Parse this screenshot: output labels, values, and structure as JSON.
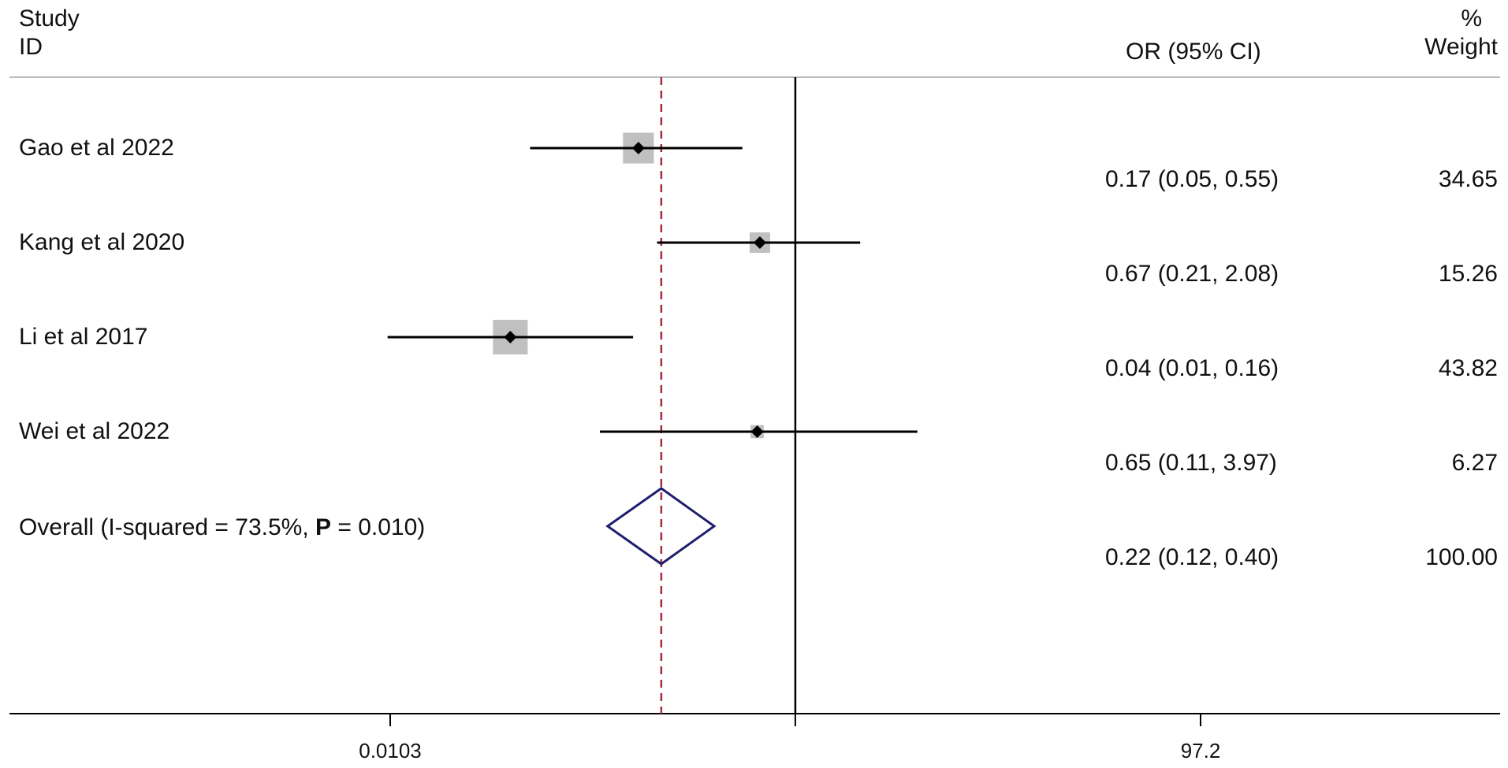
{
  "header": {
    "study_label_line1": "Study",
    "study_label_line2": "ID",
    "ci_label": "OR (95% CI)",
    "weight_label_line1": "%",
    "weight_label_line2": "Weight"
  },
  "overall": {
    "label_prefix": "Overall  (I-squared = 73.5%, ",
    "label_p": "P",
    "label_suffix": " = 0.010)"
  },
  "chart_data": {
    "type": "forest",
    "scale": "log",
    "null_line": 1,
    "xlim": [
      0.0103,
      97.2
    ],
    "xticks": [
      0.0103,
      97.2
    ],
    "xtick_labels": [
      "0.0103",
      "97.2"
    ],
    "colors": {
      "line": "#000000",
      "weight_box": "#c0c0c0",
      "summary_diamond": "#1f1f6e",
      "pooled_line": "#a0303a"
    },
    "studies": [
      {
        "name": "Gao et al 2022",
        "or": 0.17,
        "lo": 0.05,
        "hi": 0.55,
        "ci_text": "0.17 (0.05, 0.55)",
        "weight": 34.65,
        "weight_text": "34.65"
      },
      {
        "name": "Kang et al 2020",
        "or": 0.67,
        "lo": 0.21,
        "hi": 2.08,
        "ci_text": "0.67 (0.21, 2.08)",
        "weight": 15.26,
        "weight_text": "15.26"
      },
      {
        "name": "Li et al 2017",
        "or": 0.04,
        "lo": 0.01,
        "hi": 0.16,
        "ci_text": "0.04 (0.01, 0.16)",
        "weight": 43.82,
        "weight_text": "43.82"
      },
      {
        "name": "Wei et al 2022",
        "or": 0.65,
        "lo": 0.11,
        "hi": 3.97,
        "ci_text": "0.65 (0.11, 3.97)",
        "weight": 6.27,
        "weight_text": "6.27"
      }
    ],
    "summary": {
      "or": 0.22,
      "lo": 0.12,
      "hi": 0.4,
      "ci_text": "0.22 (0.12, 0.40)",
      "weight": 100.0,
      "weight_text": "100.00"
    }
  }
}
